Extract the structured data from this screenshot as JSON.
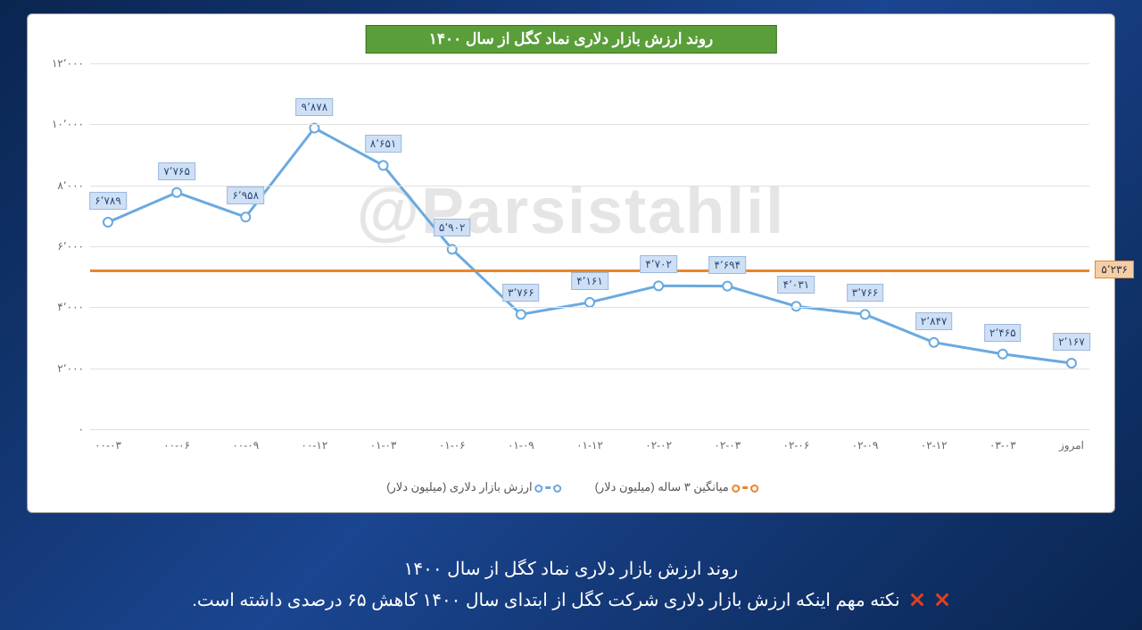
{
  "chart": {
    "title": "روند ارزش بازار دلاری نماد کگل از سال ۱۴۰۰",
    "title_bg": "#5a9e3a",
    "title_border": "#3a7020",
    "title_color": "#ffffff",
    "title_fontsize": 17,
    "watermark": "@Parsistahlil",
    "watermark_color_rgba": "rgba(150,150,150,0.25)",
    "background_color": "#ffffff",
    "grid_color": "#e0e0e0",
    "ylim": [
      0,
      12000
    ],
    "ytick_step": 2000,
    "yticks": [
      "۰",
      "۲٬۰۰۰",
      "۴٬۰۰۰",
      "۶٬۰۰۰",
      "۸٬۰۰۰",
      "۱۰٬۰۰۰",
      "۱۲٬۰۰۰"
    ],
    "xlabels": [
      "۰۰-۰۳",
      "۰۰-۰۶",
      "۰۰-۰۹",
      "۰۰-۱۲",
      "۰۱-۰۳",
      "۰۱-۰۶",
      "۰۱-۰۹",
      "۰۱-۱۲",
      "۰۲-۰۲",
      "۰۲-۰۳",
      "۰۲-۰۶",
      "۰۲-۰۹",
      "۰۲-۱۲",
      "۰۳-۰۳",
      "امروز"
    ],
    "series": {
      "name": "ارزش بازار دلاری (میلیون دلار)",
      "color": "#6aa9e0",
      "marker_fill": "#ffffff",
      "marker_stroke": "#6aa9e0",
      "marker_size": 5,
      "line_width": 3,
      "values": [
        6789,
        7765,
        6958,
        9878,
        8651,
        5902,
        3766,
        4161,
        4702,
        4694,
        4031,
        3766,
        2847,
        2465,
        2167
      ],
      "labels": [
        "۶٬۷۸۹",
        "۷٬۷۶۵",
        "۶٬۹۵۸",
        "۹٬۸۷۸",
        "۸٬۶۵۱",
        "۵٬۹۰۲",
        "۳٬۷۶۶",
        "۴٬۱۶۱",
        "۴٬۷۰۲",
        "۴٬۶۹۴",
        "۴٬۰۳۱",
        "۳٬۷۶۶",
        "۲٬۸۴۷",
        "۲٬۴۶۵",
        "۲٬۱۶۷"
      ],
      "label_bg": "#cfe0f5",
      "label_border": "#9ab8de",
      "label_fontsize": 12
    },
    "average": {
      "name": "میانگین ۳ ساله (میلیون دلار)",
      "color": "#e8862c",
      "value": 5236,
      "label": "۵٬۲۳۶",
      "label_bg": "#f5cea8",
      "line_width": 3
    },
    "axis_label_fontsize": 12,
    "axis_label_color": "#666666"
  },
  "footer": {
    "line1": "روند ارزش بازار دلاری نماد کگل از سال ۱۴۰۰",
    "line2": "نکته مهم اینکه ارزش بازار دلاری شرکت  کگل از ابتدای سال ۱۴۰۰ کاهش ۶۵ درصدی داشته است.",
    "text_color": "#ffffff",
    "x_icon_color": "#e04020",
    "fontsize": 20
  },
  "page": {
    "bg_gradient": [
      "#0a2550",
      "#1a4590",
      "#0a2550"
    ]
  }
}
